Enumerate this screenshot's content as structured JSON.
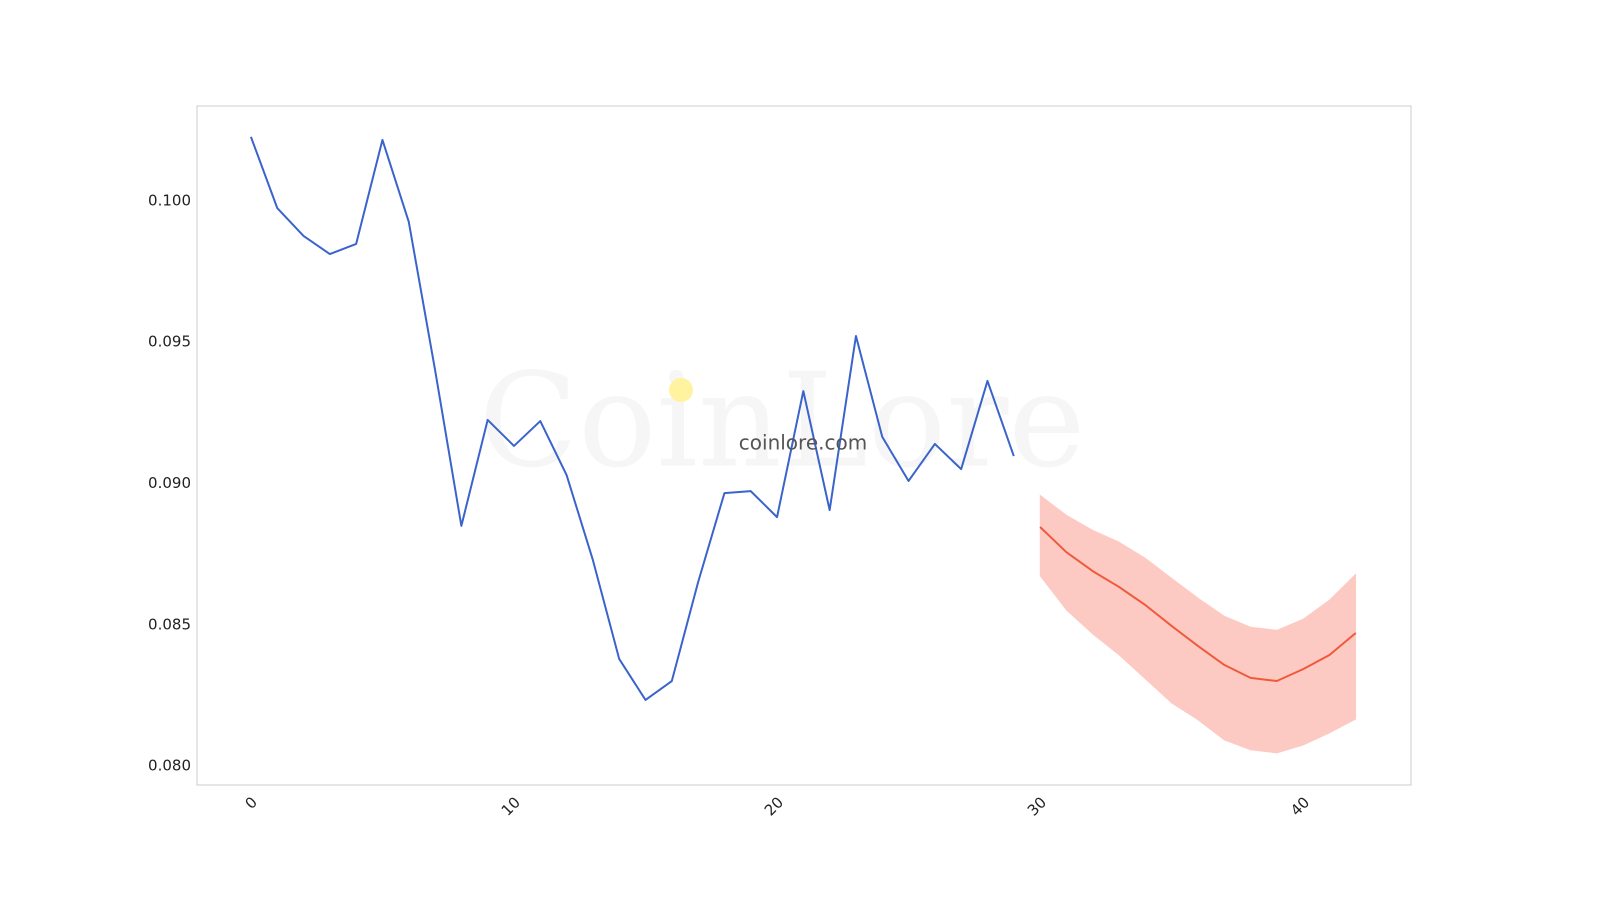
{
  "chart_data": {
    "type": "line",
    "watermark": "CoinLore",
    "watermark_url": "coinlore.com",
    "xlim": [
      -2.05,
      44.1
    ],
    "ylim": [
      0.07933,
      0.10336
    ],
    "xticks": [
      0,
      10,
      20,
      30,
      40
    ],
    "yticks": [
      {
        "value": 0.08,
        "label": "0.080"
      },
      {
        "value": 0.085,
        "label": "0.085"
      },
      {
        "value": 0.09,
        "label": "0.090"
      },
      {
        "value": 0.095,
        "label": "0.095"
      },
      {
        "value": 0.1,
        "label": "0.100"
      }
    ],
    "series": [
      {
        "color": "#3a63cc",
        "x": [
          0,
          1,
          2,
          3,
          4,
          5,
          6,
          7,
          8,
          9,
          10,
          11,
          12,
          13,
          14,
          15,
          16,
          17,
          18,
          19,
          20,
          21,
          22,
          23,
          24,
          25,
          26,
          27,
          28,
          29
        ],
        "values": [
          0.10227,
          0.09975,
          0.09876,
          0.09812,
          0.09848,
          0.10216,
          0.09926,
          0.09402,
          0.0885,
          0.09225,
          0.09133,
          0.09221,
          0.0903,
          0.08729,
          0.08379,
          0.08234,
          0.08301,
          0.08651,
          0.08966,
          0.08973,
          0.08881,
          0.09327,
          0.08906,
          0.09522,
          0.09165,
          0.09009,
          0.0914,
          0.09051,
          0.09363,
          0.09097
        ]
      },
      {
        "color": "#f05a3c",
        "band_color": "#fdcac3",
        "x": [
          30,
          31,
          32,
          33,
          34,
          35,
          36,
          37,
          38,
          39,
          40,
          41,
          42
        ],
        "values": [
          0.08846,
          0.08757,
          0.0869,
          0.08634,
          0.0857,
          0.08496,
          0.08425,
          0.08358,
          0.08312,
          0.08301,
          0.08343,
          0.08393,
          0.08471
        ],
        "upper": [
          0.08959,
          0.08888,
          0.08835,
          0.08793,
          0.08736,
          0.08665,
          0.08595,
          0.08531,
          0.08492,
          0.08481,
          0.0852,
          0.08588,
          0.0868
        ],
        "lower": [
          0.08673,
          0.08552,
          0.08467,
          0.08393,
          0.08308,
          0.08223,
          0.08163,
          0.08092,
          0.08057,
          0.08046,
          0.08074,
          0.08117,
          0.08166
        ]
      }
    ]
  }
}
